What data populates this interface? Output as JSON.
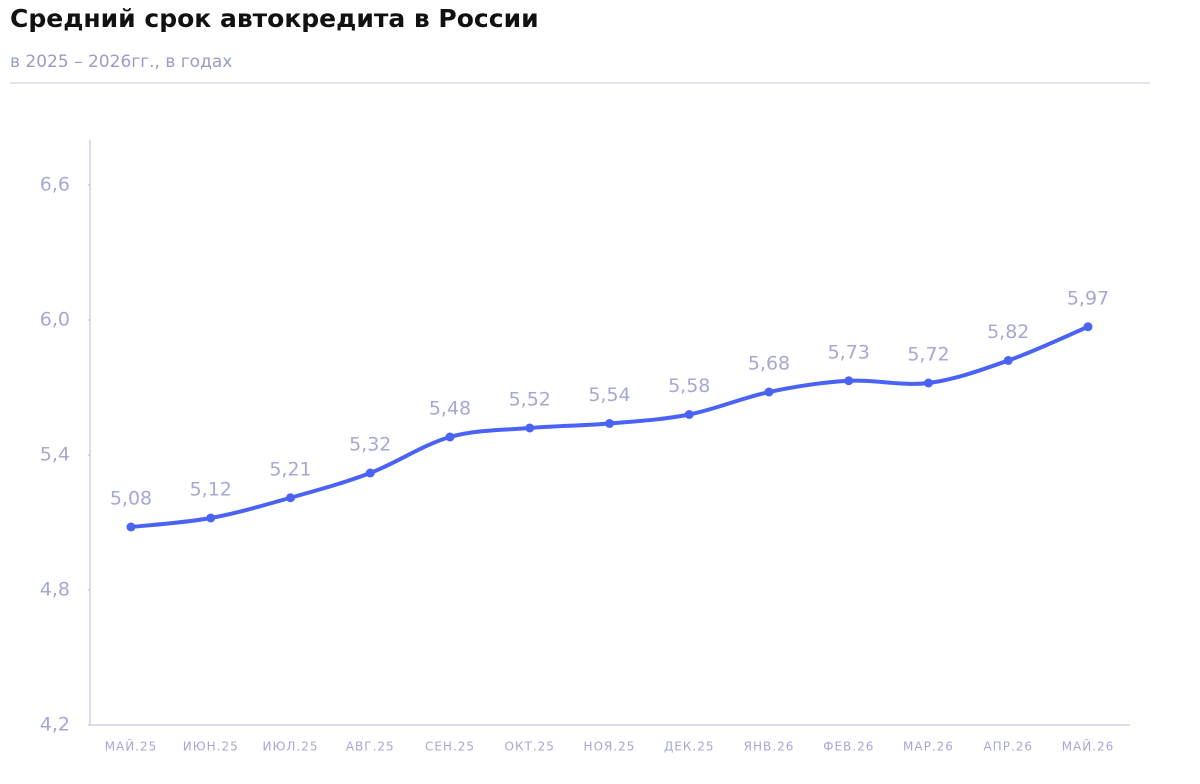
{
  "chart_data": {
    "type": "line",
    "title": "Средний срок автокредита в России",
    "subtitle": "в 2025 – 2026гг., в годах",
    "categories": [
      "МАЙ.25",
      "ИЮН.25",
      "ИЮЛ.25",
      "АВГ.25",
      "СЕН.25",
      "ОКТ.25",
      "НОЯ.25",
      "ДЕК.25",
      "ЯНВ.26",
      "ФЕВ.26",
      "МАР.26",
      "АПР.26",
      "МАЙ.26"
    ],
    "series": [
      {
        "color": "#4a63f5",
        "values": [
          5.08,
          5.12,
          5.21,
          5.32,
          5.48,
          5.52,
          5.54,
          5.58,
          5.68,
          5.73,
          5.72,
          5.82,
          5.97
        ],
        "value_labels": [
          "5,08",
          "5,12",
          "5,21",
          "5,32",
          "5,48",
          "5,52",
          "5,54",
          "5,58",
          "5,68",
          "5,73",
          "5,72",
          "5,82",
          "5,97"
        ]
      }
    ],
    "ylim": [
      4.2,
      6.8
    ],
    "yticks": [
      {
        "value": 4.2,
        "label": "4,2"
      },
      {
        "value": 4.8,
        "label": "4,8"
      },
      {
        "value": 5.4,
        "label": "5,4"
      },
      {
        "value": 6.0,
        "label": "6,0"
      },
      {
        "value": 6.6,
        "label": "6,6"
      }
    ],
    "grid": false
  }
}
